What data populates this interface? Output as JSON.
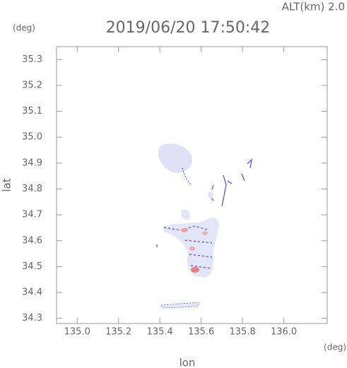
{
  "chart_data": {
    "type": "map",
    "title": "2019/06/20 17:50:42",
    "subtitle": "ALT(km) 2.0",
    "x_label": "lon",
    "y_label": "lat",
    "x_unit": "(deg)",
    "y_unit": "(deg)",
    "xlim": [
      134.9,
      136.21
    ],
    "ylim": [
      34.28,
      35.35
    ],
    "xticks": [
      {
        "value": 135.0,
        "label": "135.0"
      },
      135.2,
      135.4,
      135.6,
      135.8,
      {
        "value": 136.0,
        "label": "136.0"
      }
    ],
    "yticks": [
      34.3,
      34.4,
      34.5,
      34.6,
      34.7,
      34.8,
      34.9,
      {
        "value": 35.0,
        "label": "35.0"
      },
      35.1,
      35.2,
      35.3
    ]
  }
}
